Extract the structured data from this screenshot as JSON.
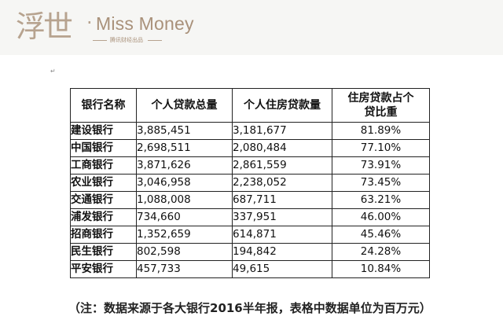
{
  "header": {
    "logo_cn": "浮世",
    "logo_sep": "·",
    "logo_en": "Miss Money",
    "logo_sub": "腾讯财经出品"
  },
  "cursor_mark": "↵",
  "table": {
    "headers": [
      "银行名称",
      "个人贷款总量",
      "个人住房贷款量",
      "住房贷款占个贷比重"
    ],
    "rows": [
      [
        "建设银行",
        "3,885,451",
        "3,181,677",
        "81.89%"
      ],
      [
        "中国银行",
        "2,698,511",
        "2,080,484",
        "77.10%"
      ],
      [
        "工商银行",
        "3,871,626",
        "2,861,559",
        "73.91%"
      ],
      [
        "农业银行",
        "3,046,958",
        "2,238,052",
        "73.45%"
      ],
      [
        "交通银行",
        "1,088,008",
        "687,711",
        "63.21%"
      ],
      [
        "浦发银行",
        "734,660",
        "337,951",
        "46.00%"
      ],
      [
        "招商银行",
        "1,352,659",
        "614,871",
        "45.46%"
      ],
      [
        "民生银行",
        "802,598",
        "194,842",
        "24.28%"
      ],
      [
        "平安银行",
        "457,733",
        "49,615",
        "10.84%"
      ]
    ]
  },
  "note": "（注：数据来源于各大银行2016半年报，表格中数据单位为百万元）"
}
